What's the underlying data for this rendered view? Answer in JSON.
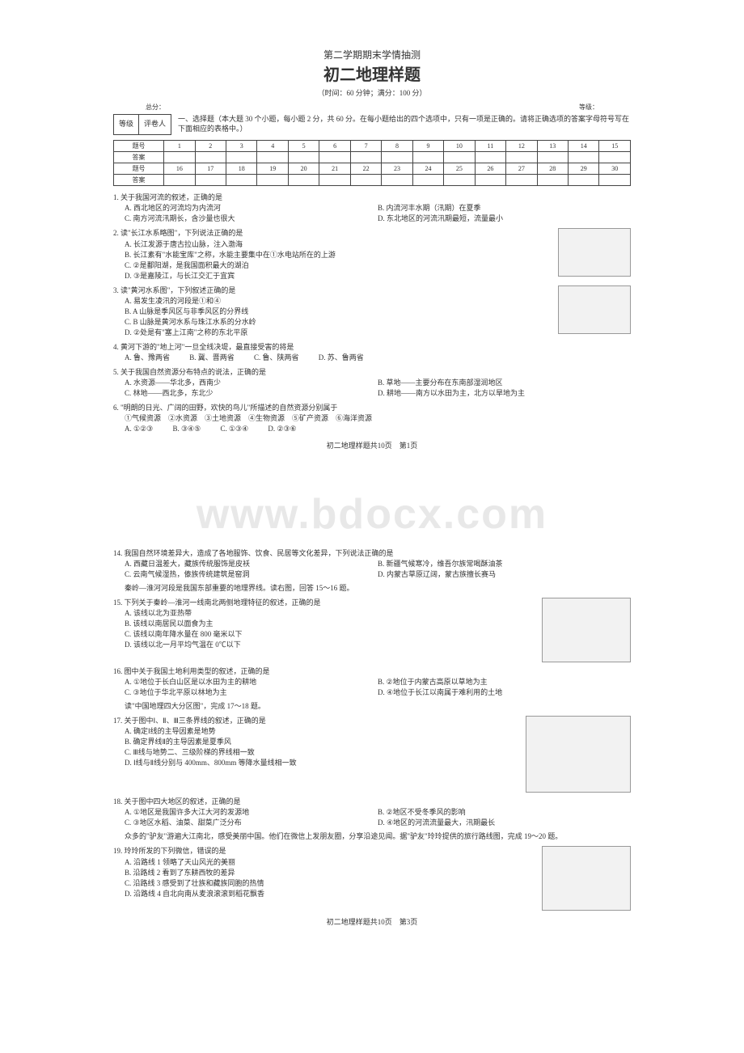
{
  "watermark": "www.bdocx.com",
  "page1": {
    "subtitle": "第二学期期末学情抽测",
    "title": "初二地理样题",
    "meta": "（时间：60 分钟；满分：100 分）",
    "score_label_total": "总分：",
    "score_label_grade": "等级：",
    "grade_box": {
      "left": "等级",
      "right": "评卷人"
    },
    "section1_instr": "一、选择题（本大题 30 个小题，每小题 2 分，共 60 分。在每小题给出的四个选项中，只有一项是正确的。请将正确选项的答案字母符号写在下面相应的表格中。）",
    "table_labels": {
      "num": "题号",
      "ans": "答案"
    },
    "table_row1": [
      "1",
      "2",
      "3",
      "4",
      "5",
      "6",
      "7",
      "8",
      "9",
      "10",
      "11",
      "12",
      "13",
      "14",
      "15"
    ],
    "table_row2": [
      "16",
      "17",
      "18",
      "19",
      "20",
      "21",
      "22",
      "23",
      "24",
      "25",
      "26",
      "27",
      "28",
      "29",
      "30"
    ],
    "q1": {
      "stem": "1. 关于我国河流的叙述，正确的是",
      "A": "A. 西北地区的河流均为内流河",
      "B": "B. 内流河丰水期（汛期）在夏季",
      "C": "C. 南方河流汛期长，含沙量也很大",
      "D": "D. 东北地区的河流汛期最短，流量最小"
    },
    "q2": {
      "stem": "2. 读\"长江水系略图\"，下列说法正确的是",
      "A": "A. 长江发源于唐古拉山脉，注入渤海",
      "B": "B. 长江素有\"水能宝库\"之称，水能主要集中在①水电站所在的上游",
      "C": "C. ②是鄱阳湖，是我国面积最大的湖泊",
      "D": "D. ③是嘉陵江，与长江交汇于宜宾"
    },
    "q3": {
      "stem": "3. 读\"黄河水系图\"，下列叙述正确的是",
      "A": "A. 易发生凌汛的河段是①和④",
      "B": "B. A 山脉是季风区与非季风区的分界线",
      "C": "C. B 山脉是黄河水系与珠江水系的分水岭",
      "D": "D. ②处是有\"塞上江南\"之称的东北平原"
    },
    "q4": {
      "stem": "4. 黄河下游的\"地上河\"一旦全线决堤，最直接受害的将是",
      "A": "A. 鲁、豫两省",
      "B": "B. 冀、晋两省",
      "C": "C. 鲁、陕两省",
      "D": "D. 苏、鲁两省"
    },
    "q5": {
      "stem": "5. 关于我国自然资源分布特点的说法，正确的是",
      "A": "A. 水资源——华北多，西南少",
      "B": "B. 草地——主要分布在东南部湿润地区",
      "C": "C. 林地——西北多，东北少",
      "D": "D. 耕地——南方以水田为主，北方以旱地为主"
    },
    "q6": {
      "stem": "6. \"明朗的日光、广阔的田野，欢快的鸟儿\"所描述的自然资源分别属于",
      "line2": "①气候资源　②水资源　③土地资源　④生物资源　⑤矿产资源　⑥海洋资源",
      "A": "A. ①②③",
      "B": "B. ③④⑤",
      "C": "C. ①③④",
      "D": "D. ②③⑥"
    },
    "footer": "初二地理样题共10页　第1页"
  },
  "page2": {
    "q14": {
      "stem": "14. 我国自然环境差异大，造成了各地服饰、饮食、民居等文化差异，下列说法正确的是",
      "A": "A. 西藏日温差大，藏族传统服饰是皮袄",
      "B": "B. 新疆气候寒冷，维吾尔族常喝酥油茶",
      "C": "C. 云南气候湿热，傣族传统建筑是窑洞",
      "D": "D. 内蒙古草原辽阔，蒙古族擅长赛马",
      "post": "秦岭—淮河河段是我国东部重要的地理界线。读右图，回答 15～16 题。"
    },
    "q15": {
      "stem": "15. 下列关于秦岭—淮河一线南北两侧地理特征的叙述，正确的是",
      "A": "A. 该线以北为亚热带",
      "B": "B. 该线以南居民以面食为主",
      "C": "C. 该线以南年降水量在 800 毫米以下",
      "D": "D. 该线以北一月平均气温在 0℃以下"
    },
    "q16": {
      "stem": "16. 图中关于我国土地利用类型的叙述，正确的是",
      "A": "A. ①地位于长白山区是以水田为主的耕地",
      "B": "B. ②地位于内蒙古高原以草地为主",
      "C": "C. ③地位于华北平原以林地为主",
      "D": "D. ④地位于长江以南属于难利用的土地",
      "post": "读\"中国地理四大分区图\"，完成 17～18 题。"
    },
    "q17": {
      "stem": "17. 关于图中Ⅰ、Ⅱ、Ⅲ三条界线的叙述，正确的是",
      "A": "A. 确定Ⅰ线的主导因素是地势",
      "B": "B. 确定界线Ⅱ的主导因素是夏季风",
      "C": "C. Ⅲ线与地势二、三级阶梯的界线相一致",
      "D": "D. Ⅰ线与Ⅱ线分别与 400mm、800mm 等降水量线相一致"
    },
    "q18": {
      "stem": "18. 关于图中四大地区的叙述，正确的是",
      "A": "A. ①地区是我国许多大江大河的发源地",
      "B": "B. ②地区不受冬季风的影响",
      "C": "C. ③地区水稻、油菜、甜菜广泛分布",
      "D": "D. ④地区的河流流量最大，汛期最长",
      "post": "众多的\"驴友\"游遍大江南北，感受美丽中国。他们在微信上发朋友圈，分享沿途见闻。据\"驴友\"玲玲提供的旅行路线图，完成 19～20 题。"
    },
    "q19": {
      "stem": "19. 玲玲所发的下列微信，错误的是",
      "A": "A. 沿路线 1 领略了天山风光的美丽",
      "B": "B. 沿路线 2 看到了东耕西牧的差异",
      "C": "C. 沿路线 3 感受到了壮族和藏族同胞的热情",
      "D": "D. 沿路线 4 自北向南从麦浪滚滚到稻花飘香"
    },
    "footer": "初二地理样题共10页　第3页"
  }
}
